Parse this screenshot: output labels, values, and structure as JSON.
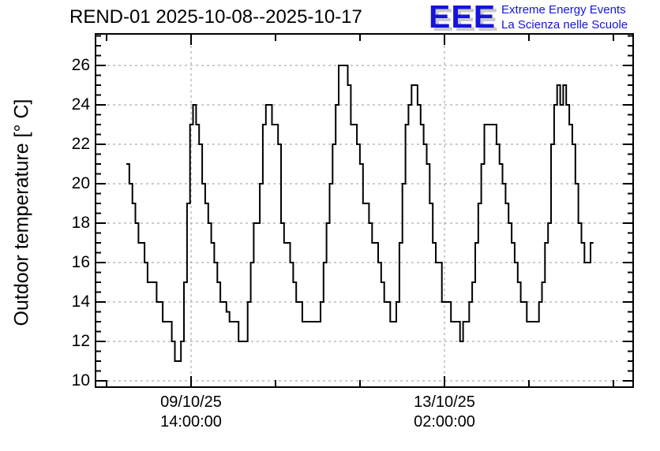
{
  "header": {
    "title": "REND-01 2025-10-08--2025-10-17",
    "logo": {
      "acronym": "EEE",
      "line1": "Extreme Energy Events",
      "line2": "La Scienza nelle Scuole",
      "accent_color": "#1414dd",
      "shadow_color": "#c9c9c9"
    }
  },
  "chart_data": {
    "type": "line",
    "subtype": "step-post-histogram",
    "title": "REND-01 2025-10-08--2025-10-17",
    "xlabel": "",
    "ylabel": "Outdoor temperature [° C]",
    "ylim": [
      9.7,
      27.6
    ],
    "y_ticks": [
      10,
      12,
      14,
      16,
      18,
      20,
      22,
      24,
      26
    ],
    "y_minor_step": 0.5,
    "x_major_ticks": [
      {
        "date": "09/10/25",
        "time": "14:00:00"
      },
      {
        "date": "13/10/25",
        "time": "02:00:00"
      }
    ],
    "x_major_interval_hours": 84,
    "grid": "dashed gray gridlines at major ticks, horizontal and vertical",
    "legend_position": "none",
    "line_color": "#000000",
    "series": [
      {
        "name": "Outdoor temperature",
        "interval_hours": 1,
        "values": [
          21,
          20,
          19,
          18,
          17,
          17,
          16,
          15,
          15,
          15,
          14,
          14,
          13,
          13,
          13,
          12,
          11,
          11,
          12,
          15,
          19,
          23,
          24,
          23,
          22,
          20,
          19,
          18,
          17,
          16,
          15,
          14,
          14,
          13.5,
          13,
          13,
          13,
          12,
          12,
          12,
          14,
          16,
          18,
          18,
          20,
          23,
          24,
          24,
          23,
          23,
          22,
          18,
          17,
          17,
          16,
          15,
          14,
          14,
          13,
          13,
          13,
          13,
          13,
          13,
          14,
          16,
          18,
          20,
          22,
          24,
          26,
          26,
          26,
          25,
          23,
          23,
          22,
          21,
          19,
          19,
          18,
          17,
          17,
          16,
          15,
          14,
          14,
          13,
          13,
          14,
          17,
          20,
          23,
          24,
          25,
          25,
          24,
          23,
          22,
          21,
          19,
          17,
          16,
          16,
          14,
          14,
          14,
          13,
          13,
          13,
          12,
          13,
          13,
          14,
          15,
          17,
          19,
          21,
          23,
          23,
          23,
          23,
          22,
          21,
          20,
          19,
          18,
          17,
          16,
          15,
          14,
          14,
          13,
          13,
          13,
          13,
          14,
          15,
          17,
          18,
          22,
          24,
          25,
          24,
          25,
          24,
          23,
          22,
          20,
          18,
          17,
          16,
          16,
          17
        ]
      }
    ]
  }
}
